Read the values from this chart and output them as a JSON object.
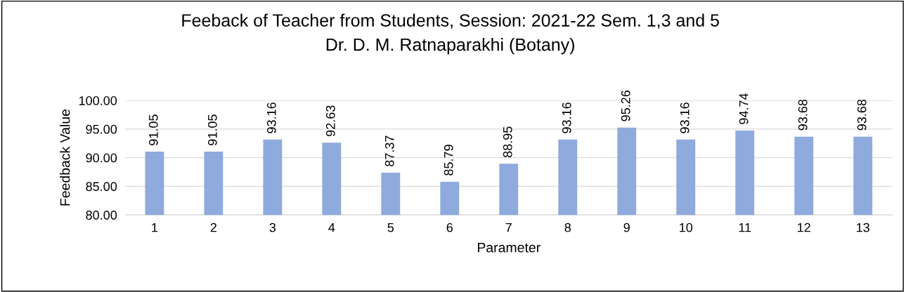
{
  "chart_data": {
    "type": "bar",
    "title": "Feeback of Teacher from Students, Session: 2021-22 Sem. 1,3 and 5",
    "subtitle": "Dr. D. M. Ratnaparakhi (Botany)",
    "xlabel": "Parameter",
    "ylabel": "Feedback Value",
    "categories": [
      "1",
      "2",
      "3",
      "4",
      "5",
      "6",
      "7",
      "8",
      "9",
      "10",
      "11",
      "12",
      "13"
    ],
    "values": [
      91.05,
      91.05,
      93.16,
      92.63,
      87.37,
      85.79,
      88.95,
      93.16,
      95.26,
      93.16,
      94.74,
      93.68,
      93.68
    ],
    "color": "#8faadc",
    "data_labels": true,
    "grid": "y",
    "legend": false,
    "ylim": [
      80,
      100
    ],
    "yticks": [
      {
        "value": 80,
        "label": "80.00"
      },
      {
        "value": 85,
        "label": "85.00"
      },
      {
        "value": 90,
        "label": "90.00"
      },
      {
        "value": 95,
        "label": "95.00"
      },
      {
        "value": 100,
        "label": "100.00"
      }
    ]
  }
}
